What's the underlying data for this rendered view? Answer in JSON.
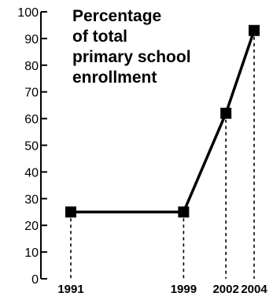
{
  "chart_data": {
    "type": "line",
    "title_lines": [
      "Percentage",
      "of total",
      "primary school",
      "enrollment"
    ],
    "xlabel": "",
    "ylabel": "",
    "x": [
      1991,
      1999,
      2002,
      2004
    ],
    "x_tick_labels": [
      "1991",
      "1999",
      "2002",
      "2004"
    ],
    "series": [
      {
        "values": [
          25,
          25,
          62,
          93
        ]
      }
    ],
    "ylim": [
      0,
      100
    ],
    "y_ticks": [
      0,
      10,
      20,
      30,
      40,
      50,
      60,
      70,
      80,
      90,
      100
    ],
    "y_tick_labels": [
      "0",
      "10",
      "20",
      "30",
      "40",
      "50",
      "60",
      "70",
      "80",
      "90",
      "100"
    ],
    "grid": false,
    "legend": "none",
    "drop_lines": "dashed",
    "marker": "square",
    "line_color": "#000000"
  }
}
